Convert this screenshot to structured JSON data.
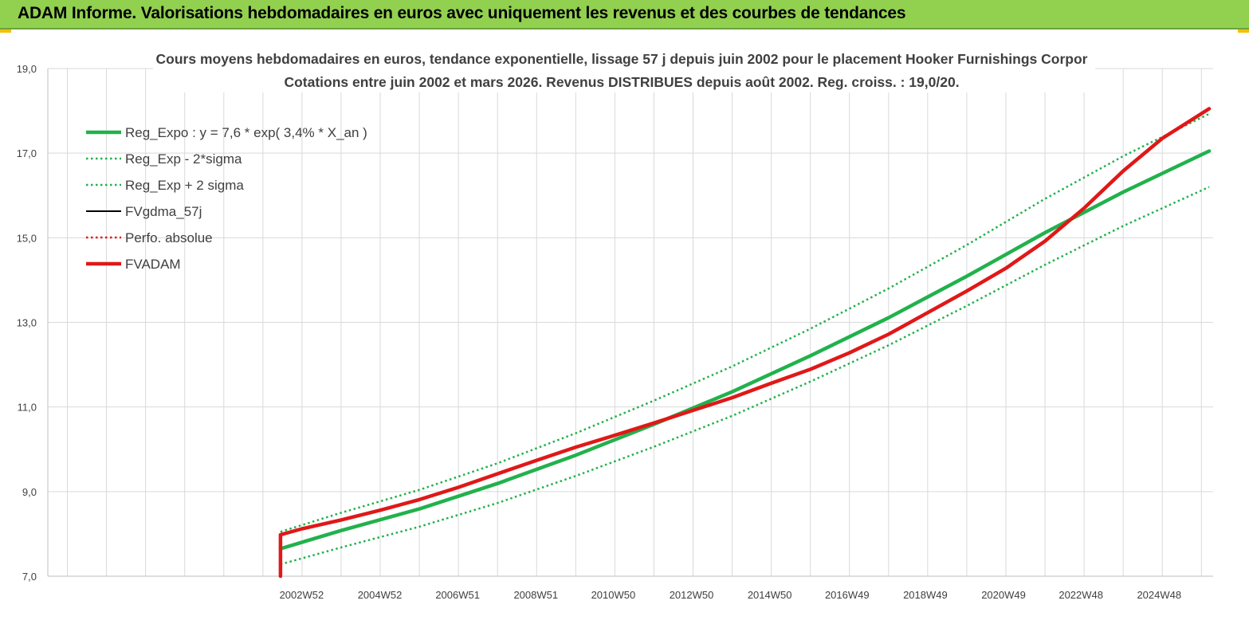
{
  "header": {
    "title": "ADAM Informe. Valorisations hebdomadaires en euros avec uniquement les revenus et des courbes de tendances"
  },
  "colors": {
    "banner": "#92d050",
    "reg_expo": "#22b14c",
    "fvgdma": "#000000",
    "perfo": "#e01818",
    "fvadam": "#e01818",
    "grid": "#d9d9d9"
  },
  "chart_data": {
    "type": "line",
    "title": "Cours moyens hebdomadaires en euros, tendance exponentielle, lissage 57 j depuis juin 2002 pour le placement Hooker Furnishings Corpor",
    "subtitle": "Cotations entre juin 2002 et mars 2026. Revenus DISTRIBUES depuis août 2002. Reg. croiss. : 19,0/20.",
    "xlabel": "",
    "ylabel": "",
    "ylim": [
      7.0,
      19.0
    ],
    "xlim": [
      1996.5,
      2026.3
    ],
    "grid": true,
    "legend_position": "top-left",
    "y_ticks": [
      "7,0",
      "9,0",
      "11,0",
      "13,0",
      "15,0",
      "17,0",
      "19,0"
    ],
    "x_ticks": [
      {
        "label": "2002W52",
        "x": 2002.99
      },
      {
        "label": "2004W52",
        "x": 2004.99
      },
      {
        "label": "2006W51",
        "x": 2006.98
      },
      {
        "label": "2008W51",
        "x": 2008.98
      },
      {
        "label": "2010W50",
        "x": 2010.96
      },
      {
        "label": "2012W50",
        "x": 2012.96
      },
      {
        "label": "2014W50",
        "x": 2014.96
      },
      {
        "label": "2016W49",
        "x": 2016.94
      },
      {
        "label": "2018W49",
        "x": 2018.94
      },
      {
        "label": "2020W49",
        "x": 2020.94
      },
      {
        "label": "2022W48",
        "x": 2022.92
      },
      {
        "label": "2024W48",
        "x": 2024.92
      }
    ],
    "series": [
      {
        "name": "Reg_Expo : y = 7,6 * exp( 3,4% *  X_an )",
        "style": "solid-thick",
        "color": "#22b14c",
        "x": [
          2002.45,
          2004,
          2006,
          2008,
          2010,
          2012,
          2014,
          2016,
          2018,
          2020,
          2022,
          2024,
          2026.2
        ],
        "y": [
          7.65,
          8.08,
          8.59,
          9.19,
          9.86,
          10.59,
          11.36,
          12.21,
          13.11,
          14.09,
          15.12,
          16.08,
          17.05
        ]
      },
      {
        "name": "Reg_Exp - 2*sigma",
        "style": "dotted",
        "color": "#22b14c",
        "x": [
          2002.45,
          2004,
          2006,
          2008,
          2010,
          2012,
          2014,
          2016,
          2018,
          2020,
          2022,
          2024,
          2026.2
        ],
        "y": [
          7.28,
          7.68,
          8.17,
          8.73,
          9.37,
          10.06,
          10.79,
          11.6,
          12.46,
          13.39,
          14.36,
          15.28,
          16.2
        ]
      },
      {
        "name": "Reg_Exp + 2 sigma",
        "style": "dotted",
        "color": "#22b14c",
        "x": [
          2002.45,
          2004,
          2006,
          2008,
          2010,
          2012,
          2014,
          2016,
          2018,
          2020,
          2022,
          2024,
          2026.2
        ],
        "y": [
          8.05,
          8.5,
          9.04,
          9.67,
          10.38,
          11.15,
          11.96,
          12.85,
          13.8,
          14.83,
          15.92,
          16.93,
          17.93
        ]
      },
      {
        "name": "FVgdma_57j",
        "style": "solid",
        "color": "#000000",
        "x": [
          2002.45,
          2002.45,
          2002.6
        ],
        "y": [
          7.0,
          7.98,
          8.0
        ]
      },
      {
        "name": "Perfo. absolue",
        "style": "dotted",
        "color": "#e01818",
        "x": [
          2002.45,
          2002.45,
          2003,
          2004,
          2005,
          2006,
          2007,
          2008,
          2009,
          2010,
          2011,
          2012,
          2013,
          2014,
          2015,
          2016,
          2017,
          2018,
          2019,
          2020,
          2021,
          2022,
          2023,
          2024,
          2025,
          2026.2
        ],
        "y": [
          7.0,
          7.98,
          8.12,
          8.33,
          8.56,
          8.81,
          9.1,
          9.42,
          9.74,
          10.05,
          10.33,
          10.62,
          10.92,
          11.22,
          11.56,
          11.89,
          12.28,
          12.72,
          13.23,
          13.74,
          14.28,
          14.92,
          15.7,
          16.58,
          17.35,
          18.05
        ]
      },
      {
        "name": "FVADAM",
        "style": "solid-thick",
        "color": "#e01818",
        "x": [
          2002.45,
          2002.45,
          2003,
          2004,
          2005,
          2006,
          2007,
          2008,
          2009,
          2010,
          2011,
          2012,
          2013,
          2014,
          2015,
          2016,
          2017,
          2018,
          2019,
          2020,
          2021,
          2022,
          2023,
          2024,
          2025,
          2026.2
        ],
        "y": [
          7.0,
          7.98,
          8.12,
          8.33,
          8.56,
          8.81,
          9.1,
          9.42,
          9.74,
          10.05,
          10.33,
          10.62,
          10.92,
          11.22,
          11.56,
          11.89,
          12.28,
          12.72,
          13.23,
          13.74,
          14.28,
          14.92,
          15.7,
          16.58,
          17.35,
          18.05
        ]
      }
    ]
  }
}
